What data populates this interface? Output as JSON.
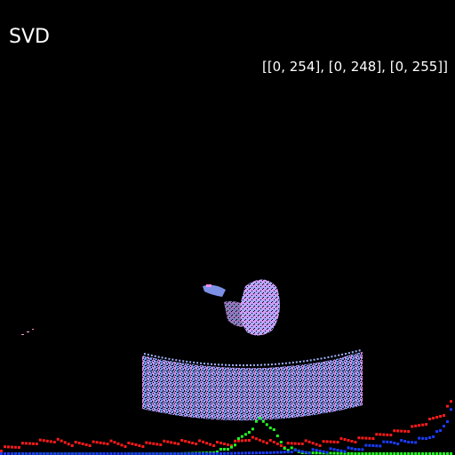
{
  "title": "SVD",
  "range_label": "[[0, 254], [0, 248], [0, 255]]",
  "colors": {
    "background": "#000000",
    "red_channel": "#ff1a1a",
    "green_channel": "#22ff22",
    "blue_channel": "#1a3cff",
    "cloud_low": "#58a8ff",
    "cloud_high": "#ff8ee8"
  },
  "chart_data": {
    "type": "line",
    "title": "",
    "xlabel": "",
    "ylabel": "",
    "x_range": [
      0,
      255
    ],
    "series": [
      {
        "name": "",
        "color": "#ff1a1a",
        "points": [
          [
            0,
            6
          ],
          [
            10,
            10
          ],
          [
            20,
            14
          ],
          [
            30,
            16
          ],
          [
            40,
            12
          ],
          [
            50,
            12
          ],
          [
            60,
            14
          ],
          [
            70,
            11
          ],
          [
            80,
            11
          ],
          [
            90,
            13
          ],
          [
            100,
            14
          ],
          [
            110,
            14
          ],
          [
            120,
            12
          ],
          [
            130,
            12
          ],
          [
            140,
            18
          ],
          [
            150,
            15
          ],
          [
            160,
            10
          ],
          [
            170,
            14
          ],
          [
            180,
            12
          ],
          [
            190,
            16
          ],
          [
            200,
            16
          ],
          [
            210,
            20
          ],
          [
            220,
            24
          ],
          [
            230,
            28
          ],
          [
            240,
            36
          ],
          [
            250,
            46
          ],
          [
            255,
            62
          ]
        ]
      },
      {
        "name": "",
        "color": "#22ff22",
        "points": [
          [
            0,
            1
          ],
          [
            40,
            1
          ],
          [
            100,
            1
          ],
          [
            120,
            2
          ],
          [
            128,
            6
          ],
          [
            134,
            16
          ],
          [
            140,
            26
          ],
          [
            146,
            40
          ],
          [
            152,
            32
          ],
          [
            160,
            8
          ],
          [
            170,
            2
          ],
          [
            200,
            1
          ],
          [
            255,
            1
          ]
        ]
      },
      {
        "name": "",
        "color": "#1a3cff",
        "points": [
          [
            0,
            1
          ],
          [
            60,
            1
          ],
          [
            120,
            1
          ],
          [
            150,
            2
          ],
          [
            180,
            4
          ],
          [
            200,
            6
          ],
          [
            210,
            10
          ],
          [
            220,
            14
          ],
          [
            230,
            14
          ],
          [
            240,
            18
          ],
          [
            248,
            26
          ],
          [
            252,
            38
          ],
          [
            255,
            60
          ]
        ]
      }
    ]
  }
}
